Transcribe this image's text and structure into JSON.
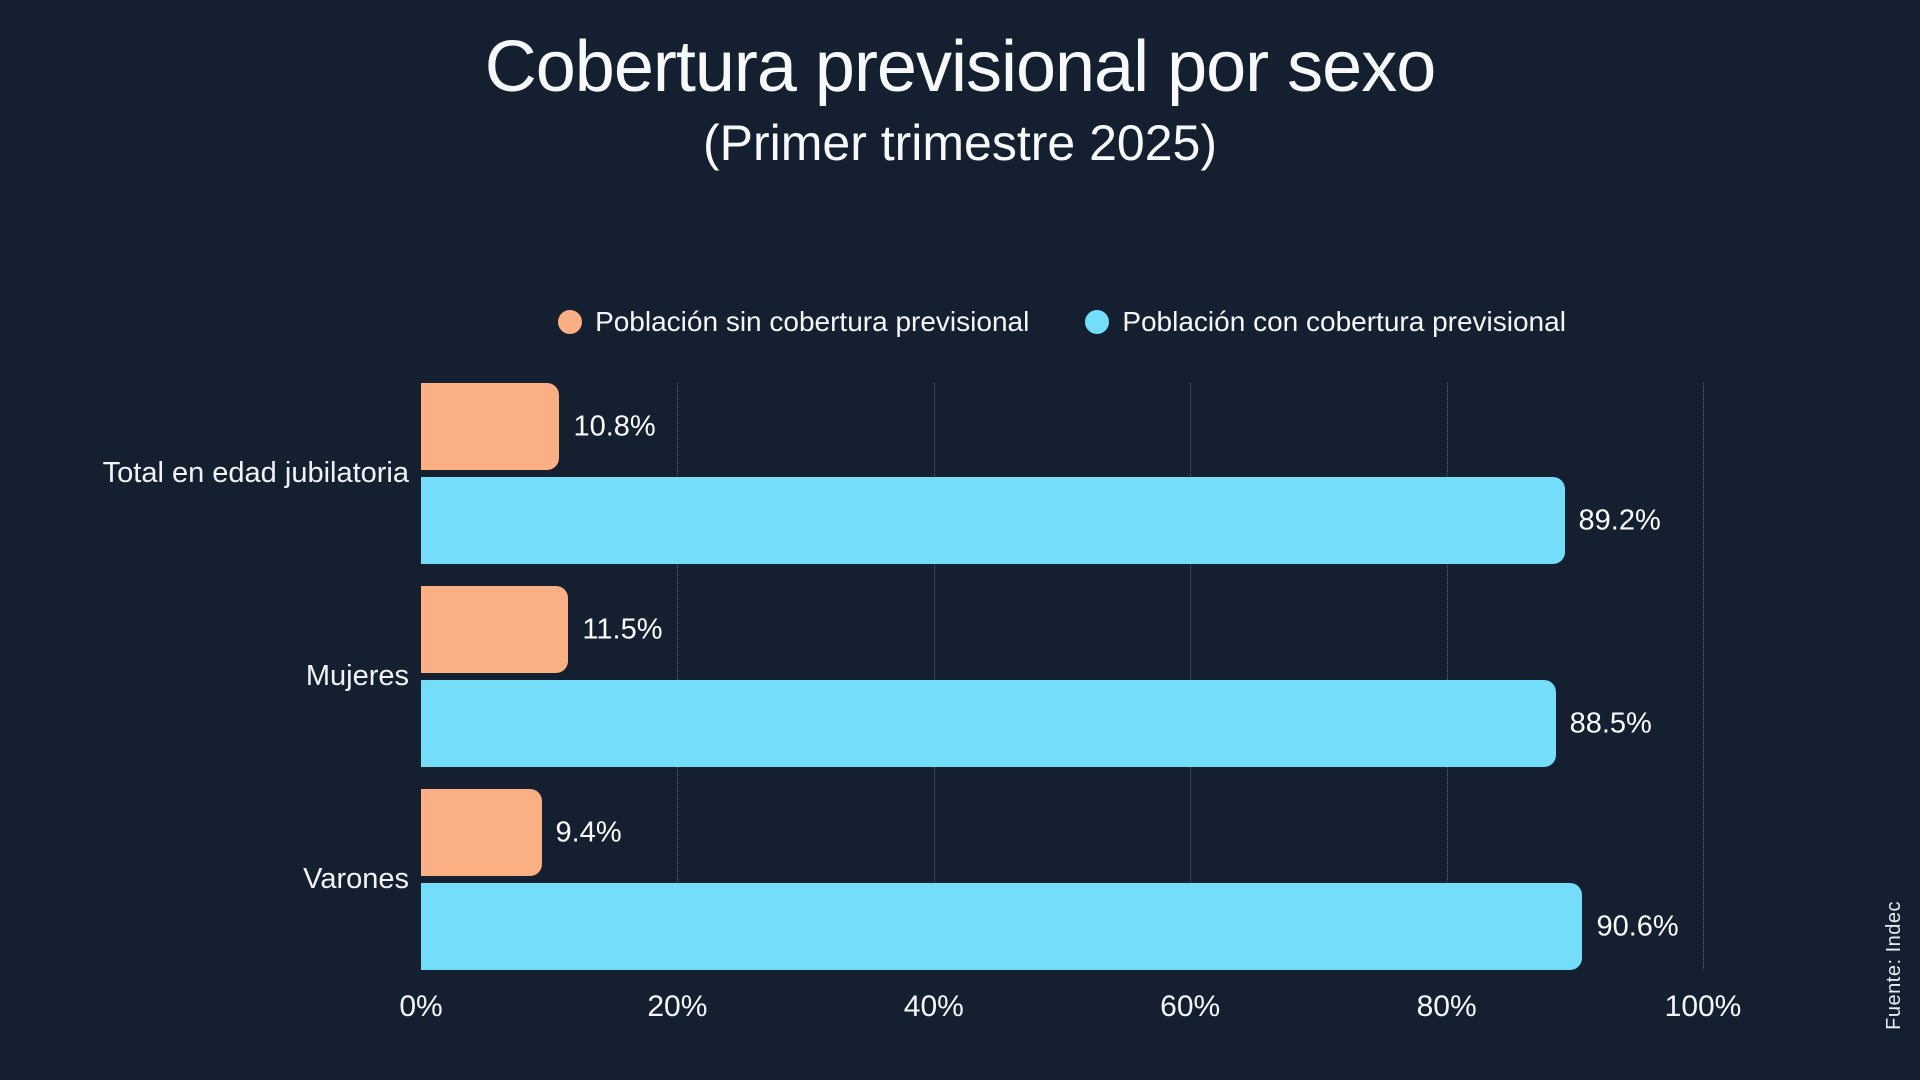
{
  "title": "Cobertura previsional por sexo",
  "subtitle": "(Primer trimestre 2025)",
  "source": "Fuente: Indec",
  "colors": {
    "background": "#142030",
    "sin_cobertura": "#FBAF84",
    "con_cobertura": "#74DEFA",
    "text": "#F4F7F9",
    "gridline": "rgba(255,255,255,0.30)"
  },
  "legend": {
    "items": [
      {
        "label": "Población sin cobertura previsional",
        "color": "#FBAF84"
      },
      {
        "label": "Población con cobertura previsional",
        "color": "#74DEFA"
      }
    ]
  },
  "chart_data": {
    "type": "bar",
    "orientation": "horizontal",
    "title": "Cobertura previsional por sexo",
    "subtitle": "(Primer trimestre 2025)",
    "categories": [
      "Total en edad jubilatoria",
      "Mujeres",
      "Varones"
    ],
    "series": [
      {
        "name": "Población sin cobertura previsional",
        "color": "#FBAF84",
        "values": [
          10.8,
          11.5,
          9.4
        ],
        "labels": [
          "10.8%",
          "11.5%",
          "9.4%"
        ]
      },
      {
        "name": "Población con cobertura previsional",
        "color": "#74DEFA",
        "values": [
          89.2,
          88.5,
          90.6
        ],
        "labels": [
          "89.2%",
          "88.5%",
          "90.6%"
        ]
      }
    ],
    "xlim": [
      0,
      100
    ],
    "x_ticks": [
      {
        "value": 0,
        "label": "0%"
      },
      {
        "value": 20,
        "label": "20%"
      },
      {
        "value": 40,
        "label": "40%"
      },
      {
        "value": 60,
        "label": "60%"
      },
      {
        "value": 80,
        "label": "80%"
      },
      {
        "value": 100,
        "label": "100%"
      }
    ],
    "grid": "vertical-dotted",
    "legend_position": "top",
    "source": "Fuente: Indec"
  }
}
